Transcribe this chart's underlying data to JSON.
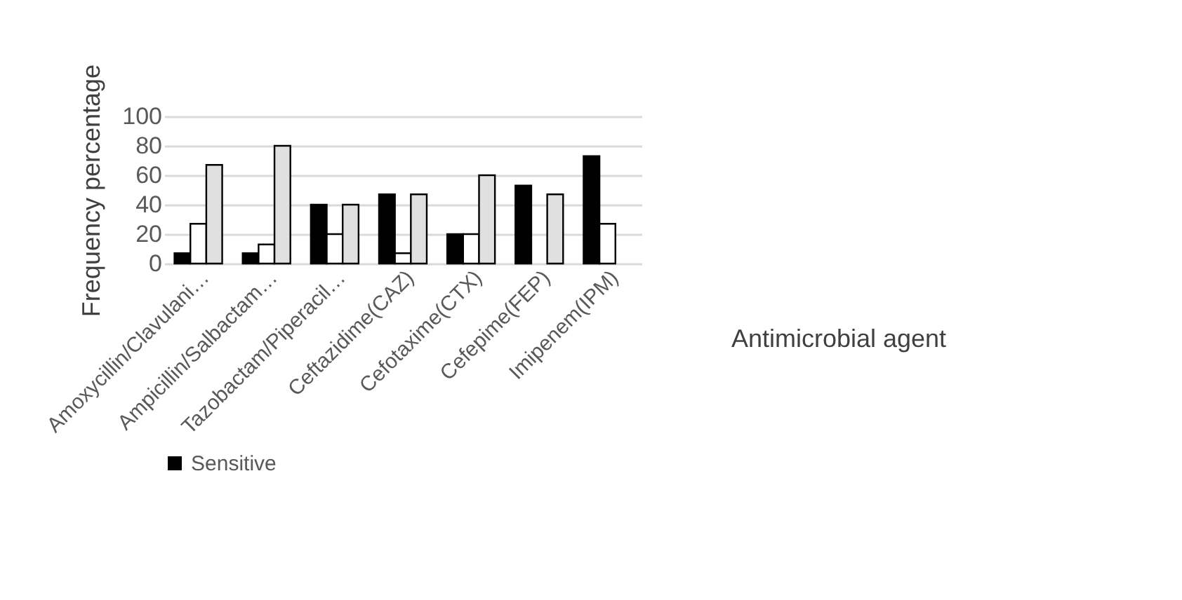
{
  "chart_data": {
    "type": "bar",
    "xlabel": "Antimicrobial agent",
    "ylabel": "Frequency percentage",
    "categories": [
      "Amoxycillin/Clavulani…",
      "Ampicillin/Salbactam…",
      "Tazobactam/Piperacil…",
      "Ceftazidime(CAZ)",
      "Cefotaxime(CTX)",
      "Cefepime(FEP)",
      "Imipenem(IPM)"
    ],
    "series": [
      {
        "name": "Sensitive",
        "color": "#000000",
        "values": [
          7,
          7,
          40,
          47,
          20,
          53,
          73
        ]
      },
      {
        "color": "#ffffff",
        "values": [
          27,
          13,
          20,
          7,
          20,
          null,
          27
        ]
      },
      {
        "color": "#e0e0e0",
        "values": [
          67,
          80,
          40,
          47,
          60,
          47,
          null
        ]
      }
    ],
    "ylim": [
      0,
      100
    ],
    "yticks": [
      0,
      20,
      40,
      60,
      80,
      100
    ],
    "grid": "y",
    "legend": "bottom"
  }
}
